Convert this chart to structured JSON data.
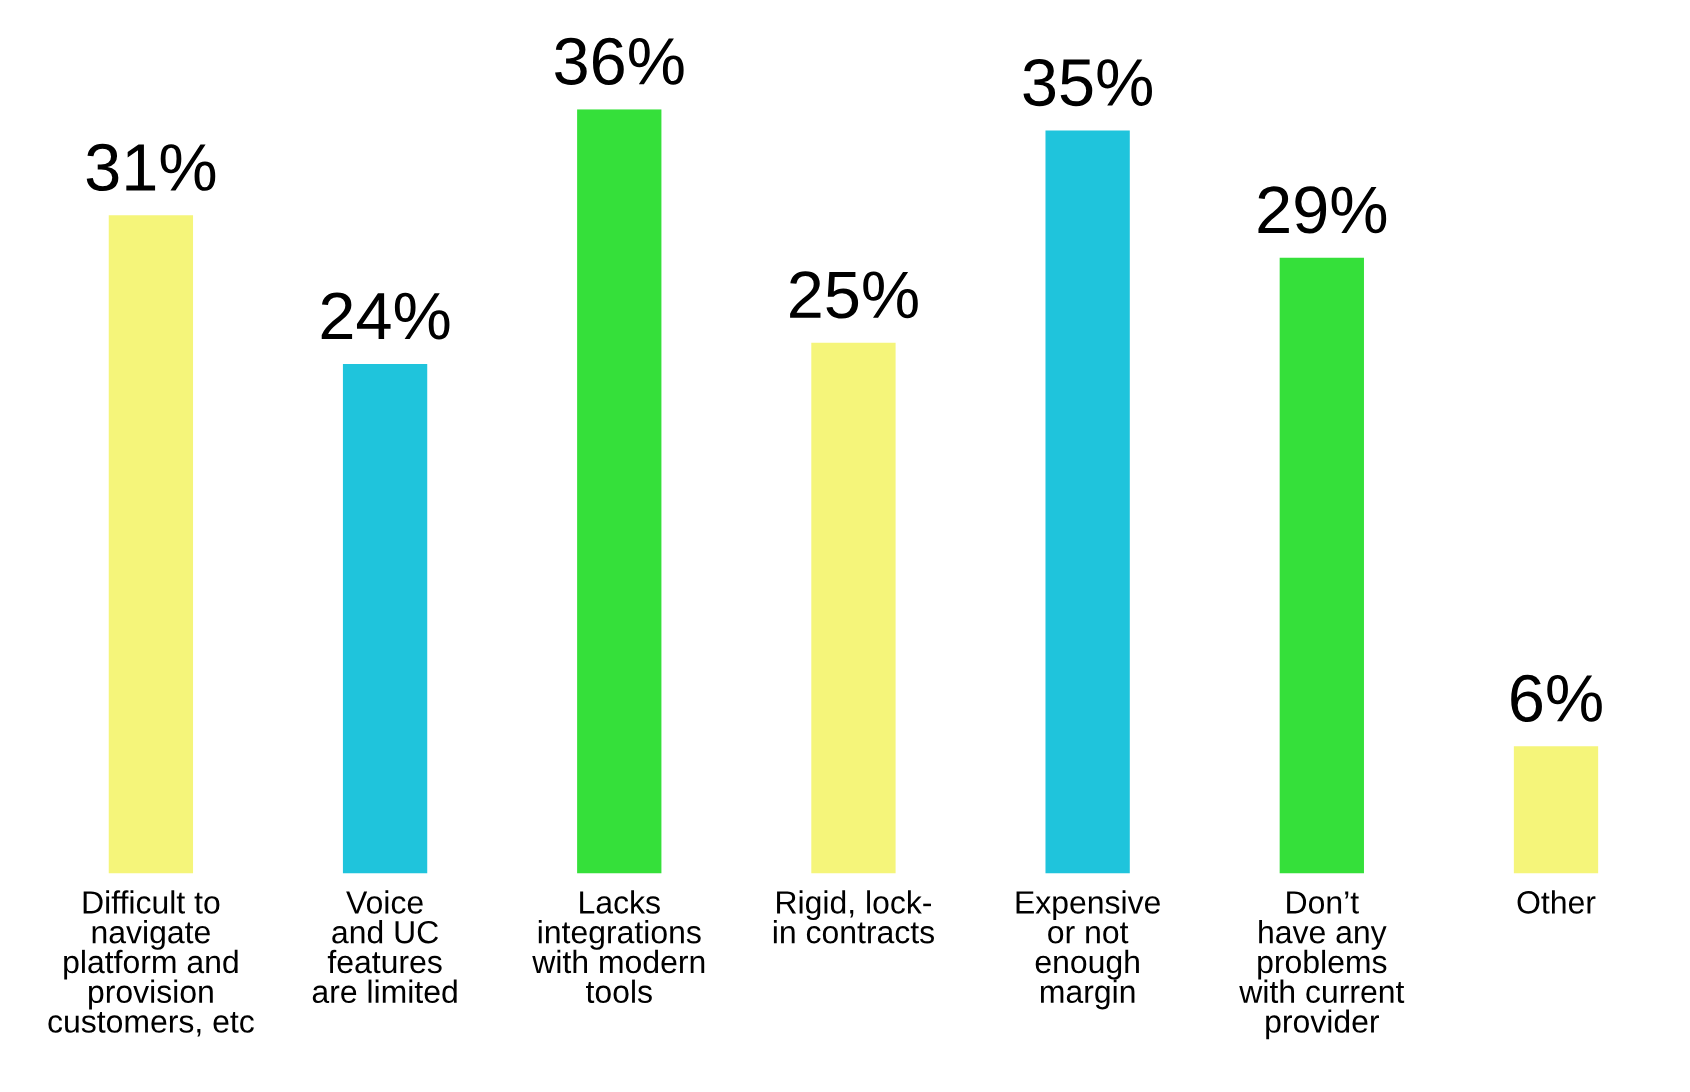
{
  "chart_data": {
    "type": "bar",
    "categories": [
      "Difficult to\nnavigate\nplatform and\nprovision\ncustomers, etc",
      "Voice\nand UC\nfeatures\nare limited",
      "Lacks\nintegrations\nwith modern\ntools",
      "Rigid, lock-\nin contracts",
      "Expensive\nor not\nenough\nmargin",
      "Don’t\nhave any\nproblems\nwith current\nprovider",
      "Other"
    ],
    "values": [
      31,
      24,
      36,
      25,
      35,
      29,
      6
    ],
    "value_labels": [
      "31%",
      "24%",
      "36%",
      "25%",
      "35%",
      "29%",
      "6%"
    ],
    "colors": [
      "#f5f57a",
      "#1fc4dc",
      "#35e03a",
      "#f5f57a",
      "#1fc4dc",
      "#35e03a",
      "#f5f57a"
    ]
  }
}
